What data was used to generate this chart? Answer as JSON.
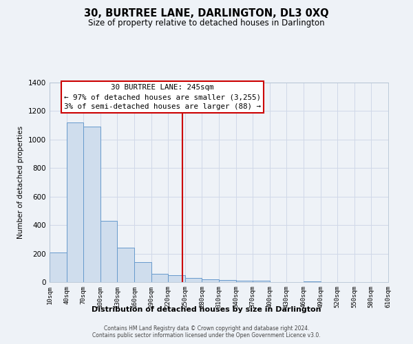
{
  "title": "30, BURTREE LANE, DARLINGTON, DL3 0XQ",
  "subtitle": "Size of property relative to detached houses in Darlington",
  "xlabel": "Distribution of detached houses by size in Darlington",
  "ylabel": "Number of detached properties",
  "bar_color": "#cfdded",
  "bar_edge_color": "#6699cc",
  "vline_x": 245,
  "vline_color": "#cc0000",
  "annotation_title": "30 BURTREE LANE: 245sqm",
  "annotation_line1": "← 97% of detached houses are smaller (3,255)",
  "annotation_line2": "3% of semi-detached houses are larger (88) →",
  "annotation_box_color": "#ffffff",
  "annotation_box_edge": "#cc0000",
  "bin_edges": [
    10,
    40,
    70,
    100,
    130,
    160,
    190,
    220,
    250,
    280,
    310,
    340,
    370,
    400,
    430,
    460,
    490,
    520,
    550,
    580,
    610
  ],
  "bar_heights": [
    210,
    1120,
    1090,
    430,
    240,
    140,
    60,
    50,
    30,
    20,
    15,
    10,
    8,
    0,
    0,
    5,
    0,
    0,
    0,
    0
  ],
  "xlim": [
    10,
    610
  ],
  "ylim": [
    0,
    1400
  ],
  "yticks": [
    0,
    200,
    400,
    600,
    800,
    1000,
    1200,
    1400
  ],
  "xtick_labels": [
    "10sqm",
    "40sqm",
    "70sqm",
    "100sqm",
    "130sqm",
    "160sqm",
    "190sqm",
    "220sqm",
    "250sqm",
    "280sqm",
    "310sqm",
    "340sqm",
    "370sqm",
    "400sqm",
    "430sqm",
    "460sqm",
    "490sqm",
    "520sqm",
    "550sqm",
    "580sqm",
    "610sqm"
  ],
  "footnote1": "Contains HM Land Registry data © Crown copyright and database right 2024.",
  "footnote2": "Contains public sector information licensed under the Open Government Licence v3.0.",
  "background_color": "#eef2f7"
}
